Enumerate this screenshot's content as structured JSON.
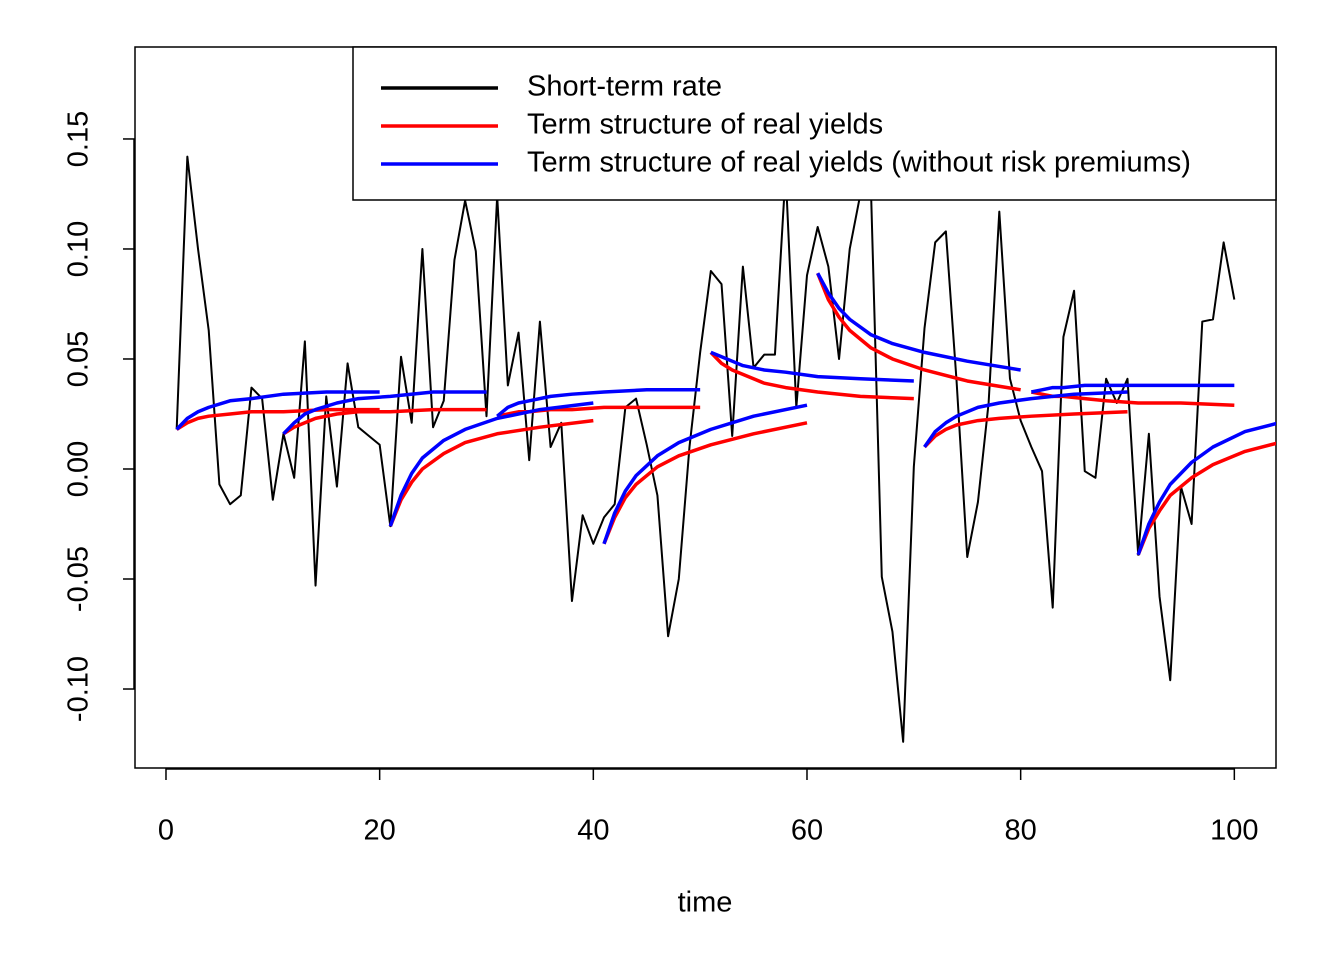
{
  "chart_data": {
    "type": "line",
    "x_label": "time",
    "xlim": [
      -2.9,
      103.9
    ],
    "xticks": [
      0,
      20,
      40,
      60,
      80,
      100
    ],
    "ylim": [
      -0.1359,
      0.1918
    ],
    "yticks": [
      {
        "value": -0.1,
        "label": "-0.10"
      },
      -0.05,
      {
        "value": 0,
        "label": "0.00"
      },
      0.05,
      {
        "value": 0.1,
        "label": "0.10"
      },
      0.15
    ],
    "legend": "top-right",
    "series": [
      {
        "name": "Short-term rate",
        "color": "#000000",
        "x": [
          1,
          2,
          3,
          4,
          5,
          6,
          7,
          8,
          9,
          10,
          11,
          12,
          13,
          14,
          15,
          16,
          17,
          18,
          19,
          20,
          21,
          22,
          23,
          24,
          25,
          26,
          27,
          28,
          29,
          30,
          31,
          32,
          33,
          34,
          35,
          36,
          37,
          38,
          39,
          40,
          41,
          42,
          43,
          44,
          45,
          46,
          47,
          48,
          49,
          50,
          51,
          52,
          53,
          54,
          55,
          56,
          57,
          58,
          59,
          60,
          61,
          62,
          63,
          64,
          65,
          66,
          67,
          68,
          69,
          70,
          71,
          72,
          73,
          74,
          75,
          76,
          77,
          78,
          79,
          80,
          81,
          82,
          83,
          84,
          85,
          86,
          87,
          88,
          89,
          90,
          91,
          92,
          93,
          94,
          95,
          96,
          97,
          98,
          99,
          100
        ],
        "values": [
          0.018,
          0.142,
          0.1,
          0.063,
          -0.007,
          -0.016,
          -0.012,
          0.037,
          0.032,
          -0.014,
          0.016,
          -0.004,
          0.058,
          -0.053,
          0.033,
          -0.008,
          0.048,
          0.019,
          0.015,
          0.011,
          -0.026,
          0.051,
          0.021,
          0.1,
          0.019,
          0.031,
          0.095,
          0.122,
          0.099,
          0.024,
          0.124,
          0.038,
          0.062,
          0.004,
          0.067,
          0.01,
          0.021,
          -0.06,
          -0.021,
          -0.034,
          -0.022,
          -0.016,
          0.028,
          0.032,
          0.011,
          -0.012,
          -0.076,
          -0.05,
          0.01,
          0.053,
          0.09,
          0.084,
          0.015,
          0.092,
          0.046,
          0.052,
          0.052,
          0.135,
          0.028,
          0.088,
          0.11,
          0.092,
          0.05,
          0.1,
          0.125,
          0.125,
          -0.049,
          -0.074,
          -0.124,
          0.001,
          0.064,
          0.103,
          0.108,
          0.04,
          -0.04,
          -0.015,
          0.03,
          0.117,
          0.041,
          0.022,
          0.01,
          -0.001,
          -0.063,
          0.06,
          0.081,
          -0.001,
          -0.004,
          0.041,
          0.03,
          0.041,
          -0.039,
          0.016,
          -0.058,
          -0.096,
          -0.008,
          -0.025,
          0.067,
          0.068,
          0.103,
          0.077
        ]
      },
      {
        "name": "Term structure of real yields",
        "color": "#ff0000",
        "segments": [
          {
            "x": [
              1,
              2,
              3,
              4,
              6,
              8,
              11,
              15,
              20
            ],
            "values": [
              0.018,
              0.021,
              0.023,
              0.024,
              0.025,
              0.026,
              0.026,
              0.027,
              0.027
            ]
          },
          {
            "x": [
              11,
              12,
              13,
              14,
              16,
              18,
              21,
              25,
              30
            ],
            "values": [
              0.016,
              0.019,
              0.021,
              0.023,
              0.025,
              0.026,
              0.026,
              0.027,
              0.027
            ]
          },
          {
            "x": [
              21,
              22,
              23,
              24,
              26,
              28,
              31,
              35,
              40
            ],
            "values": [
              -0.026,
              -0.014,
              -0.006,
              0.0,
              0.007,
              0.012,
              0.016,
              0.019,
              0.022
            ]
          },
          {
            "x": [
              31,
              32,
              33,
              34,
              36,
              38,
              41,
              45,
              50
            ],
            "values": [
              0.024,
              0.025,
              0.026,
              0.026,
              0.027,
              0.027,
              0.028,
              0.028,
              0.028
            ]
          },
          {
            "x": [
              41,
              42,
              43,
              44,
              46,
              48,
              51,
              55,
              60
            ],
            "values": [
              -0.034,
              -0.022,
              -0.013,
              -0.007,
              0.001,
              0.006,
              0.011,
              0.016,
              0.021
            ]
          },
          {
            "x": [
              51,
              52,
              53,
              54,
              56,
              58,
              61,
              65,
              70
            ],
            "values": [
              0.053,
              0.048,
              0.045,
              0.043,
              0.039,
              0.037,
              0.035,
              0.033,
              0.032
            ]
          },
          {
            "x": [
              61,
              62,
              63,
              64,
              66,
              68,
              71,
              75,
              80
            ],
            "values": [
              0.089,
              0.077,
              0.069,
              0.063,
              0.055,
              0.05,
              0.045,
              0.04,
              0.036
            ]
          },
          {
            "x": [
              71,
              72,
              73,
              74,
              76,
              78,
              81,
              85,
              90
            ],
            "values": [
              0.01,
              0.015,
              0.018,
              0.02,
              0.022,
              0.023,
              0.024,
              0.025,
              0.026
            ]
          },
          {
            "x": [
              81,
              82,
              83,
              84,
              86,
              88,
              91,
              95,
              100
            ],
            "values": [
              0.035,
              0.034,
              0.033,
              0.033,
              0.032,
              0.031,
              0.03,
              0.03,
              0.029
            ]
          },
          {
            "x": [
              91,
              92,
              93,
              94,
              96,
              98,
              101,
              105,
              110
            ],
            "values": [
              -0.039,
              -0.027,
              -0.019,
              -0.012,
              -0.004,
              0.002,
              0.008,
              0.013,
              0.017
            ]
          }
        ]
      },
      {
        "name": "Term structure of real yields (without risk premiums)",
        "color": "#0000ff",
        "segments": [
          {
            "x": [
              1,
              2,
              3,
              4,
              6,
              8,
              11,
              15,
              20
            ],
            "values": [
              0.018,
              0.023,
              0.026,
              0.028,
              0.031,
              0.032,
              0.034,
              0.035,
              0.035
            ]
          },
          {
            "x": [
              11,
              12,
              13,
              14,
              16,
              18,
              21,
              25,
              30
            ],
            "values": [
              0.016,
              0.021,
              0.025,
              0.027,
              0.03,
              0.032,
              0.033,
              0.035,
              0.035
            ]
          },
          {
            "x": [
              21,
              22,
              23,
              24,
              26,
              28,
              31,
              35,
              40
            ],
            "values": [
              -0.026,
              -0.012,
              -0.002,
              0.005,
              0.013,
              0.018,
              0.023,
              0.027,
              0.03
            ]
          },
          {
            "x": [
              31,
              32,
              33,
              34,
              36,
              38,
              41,
              45,
              50
            ],
            "values": [
              0.024,
              0.028,
              0.03,
              0.031,
              0.033,
              0.034,
              0.035,
              0.036,
              0.036
            ]
          },
          {
            "x": [
              41,
              42,
              43,
              44,
              46,
              48,
              51,
              55,
              60
            ],
            "values": [
              -0.034,
              -0.02,
              -0.01,
              -0.003,
              0.006,
              0.012,
              0.018,
              0.024,
              0.029
            ]
          },
          {
            "x": [
              51,
              52,
              53,
              54,
              56,
              58,
              61,
              65,
              70
            ],
            "values": [
              0.053,
              0.051,
              0.049,
              0.047,
              0.045,
              0.044,
              0.042,
              0.041,
              0.04
            ]
          },
          {
            "x": [
              61,
              62,
              63,
              64,
              66,
              68,
              71,
              75,
              80
            ],
            "values": [
              0.089,
              0.08,
              0.073,
              0.068,
              0.061,
              0.057,
              0.053,
              0.049,
              0.045
            ]
          },
          {
            "x": [
              71,
              72,
              73,
              74,
              76,
              78,
              81,
              85,
              90
            ],
            "values": [
              0.01,
              0.017,
              0.021,
              0.024,
              0.028,
              0.03,
              0.032,
              0.034,
              0.035
            ]
          },
          {
            "x": [
              81,
              82,
              83,
              84,
              86,
              88,
              91,
              95,
              100
            ],
            "values": [
              0.035,
              0.036,
              0.037,
              0.037,
              0.038,
              0.038,
              0.038,
              0.038,
              0.038
            ]
          },
          {
            "x": [
              91,
              92,
              93,
              94,
              96,
              98,
              101,
              105,
              110
            ],
            "values": [
              -0.039,
              -0.025,
              -0.015,
              -0.007,
              0.003,
              0.01,
              0.017,
              0.022,
              0.027
            ]
          }
        ]
      }
    ]
  }
}
